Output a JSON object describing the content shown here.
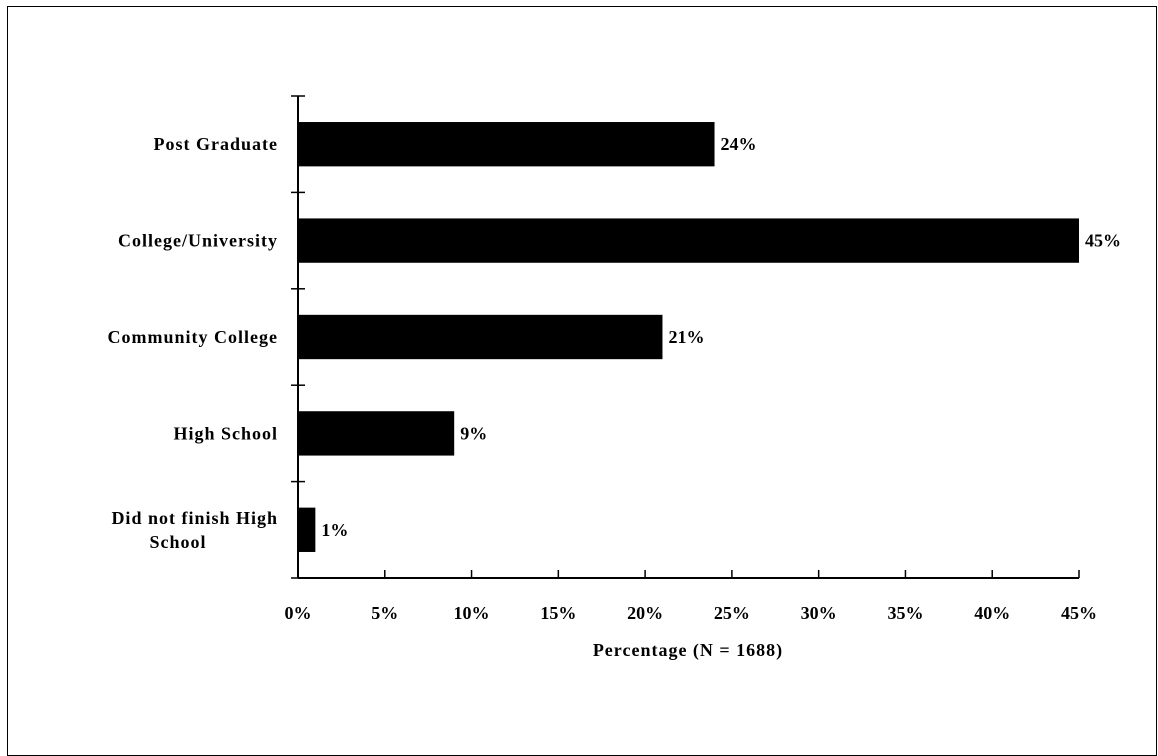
{
  "chart_data": {
    "type": "bar",
    "orientation": "horizontal",
    "categories": [
      "Post Graduate",
      "College/University",
      "Community College",
      "High School",
      "Did not finish High School"
    ],
    "category_lines": [
      [
        "Post Graduate"
      ],
      [
        "College/University"
      ],
      [
        "Community College"
      ],
      [
        "High School"
      ],
      [
        "Did not finish High",
        "School"
      ]
    ],
    "values": [
      24,
      45,
      21,
      9,
      1
    ],
    "data_labels": [
      "24%",
      "45%",
      "21%",
      "9%",
      "1%"
    ],
    "xlabel": "Percentage (N = 1688)",
    "ylabel": "",
    "xlim": [
      0,
      45
    ],
    "x_ticks": [
      0,
      5,
      10,
      15,
      20,
      25,
      30,
      35,
      40,
      45
    ],
    "x_tick_labels": [
      "0%",
      "5%",
      "10%",
      "15%",
      "20%",
      "25%",
      "30%",
      "35%",
      "40%",
      "45%"
    ],
    "grid": false,
    "legend": "none",
    "colors": {
      "bar": "#000000",
      "axis": "#000000",
      "background": "#ffffff"
    }
  }
}
